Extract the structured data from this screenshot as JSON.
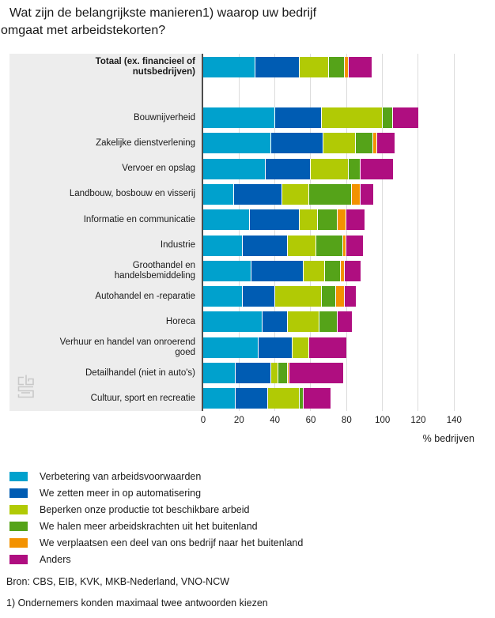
{
  "header": {
    "line1": "Wat zijn de belangrijkste manieren1) waarop uw bedrijf",
    "line2": "omgaat met arbeidstekorten?"
  },
  "chart_data": {
    "type": "bar",
    "orientation": "horizontal",
    "stacked": true,
    "title": "Wat zijn de belangrijkste manieren1) waarop uw bedrijf omgaat met arbeidstekorten?",
    "xlabel": "% bedrijven",
    "x_ticks": [
      0,
      20,
      40,
      60,
      80,
      100,
      120,
      140
    ],
    "xlim": [
      0,
      163
    ],
    "grid": true,
    "legend_position": "bottom",
    "series": [
      {
        "name": "Verbetering van arbeidsvoorwaarden",
        "color": "#00a1cd"
      },
      {
        "name": "We zetten meer in op automatisering",
        "color": "#005cb3"
      },
      {
        "name": "Beperken onze productie tot beschikbare arbeid",
        "color": "#b1ca05"
      },
      {
        "name": "We halen meer arbeidskrachten uit het buitenland",
        "color": "#55a319"
      },
      {
        "name": "We verplaatsen een deel van ons bedrijf naar het buitenland",
        "color": "#f39200"
      },
      {
        "name": "Anders",
        "color": "#af0e80"
      }
    ],
    "rows": [
      {
        "label": "Totaal (ex. financieel of nutsbedrijven)",
        "bold": true,
        "values": [
          29,
          25,
          16,
          9,
          2,
          13
        ]
      },
      {
        "label": "Bouwnijverheid",
        "bold": false,
        "values": [
          40,
          26,
          34,
          6,
          0,
          14
        ]
      },
      {
        "label": "Zakelijke dienstverlening",
        "bold": false,
        "values": [
          38,
          29,
          18,
          10,
          2,
          10
        ]
      },
      {
        "label": "Vervoer en opslag",
        "bold": false,
        "values": [
          35,
          25,
          21,
          7,
          0,
          18
        ]
      },
      {
        "label": "Landbouw, bosbouw en visserij",
        "bold": false,
        "values": [
          17,
          27,
          15,
          24,
          5,
          7
        ]
      },
      {
        "label": "Informatie en communicatie",
        "bold": false,
        "values": [
          26,
          28,
          10,
          11,
          5,
          10
        ]
      },
      {
        "label": "Industrie",
        "bold": false,
        "values": [
          22,
          25,
          16,
          15,
          2,
          9
        ]
      },
      {
        "label": "Groothandel en handelsbemiddeling",
        "bold": false,
        "values": [
          27,
          29,
          12,
          9,
          2,
          9
        ]
      },
      {
        "label": "Autohandel en -reparatie",
        "bold": false,
        "values": [
          22,
          18,
          26,
          8,
          5,
          6
        ]
      },
      {
        "label": "Horeca",
        "bold": false,
        "values": [
          33,
          14,
          18,
          10,
          0,
          8
        ]
      },
      {
        "label": "Verhuur en handel van onroerend goed",
        "bold": false,
        "values": [
          31,
          19,
          9,
          0,
          0,
          21
        ]
      },
      {
        "label": "Detailhandel (niet in auto's)",
        "bold": false,
        "values": [
          18,
          20,
          4,
          5,
          1,
          30
        ]
      },
      {
        "label": "Cultuur, sport en recreatie",
        "bold": false,
        "values": [
          18,
          18,
          18,
          2,
          0,
          15
        ]
      }
    ]
  },
  "footer": {
    "source": "Bron: CBS, EIB, KVK, MKB-Nederland, VNO-NCW",
    "footnote": "1) Ondernemers konden maximaal twee antwoorden kiezen"
  },
  "logo": {
    "name": "cbs",
    "color": "#c9c9c9"
  },
  "style_colors": {
    "label_panel_bg": "#ededed",
    "gridline": "#dcdcdc",
    "axis_line": "#4d4d4d"
  }
}
